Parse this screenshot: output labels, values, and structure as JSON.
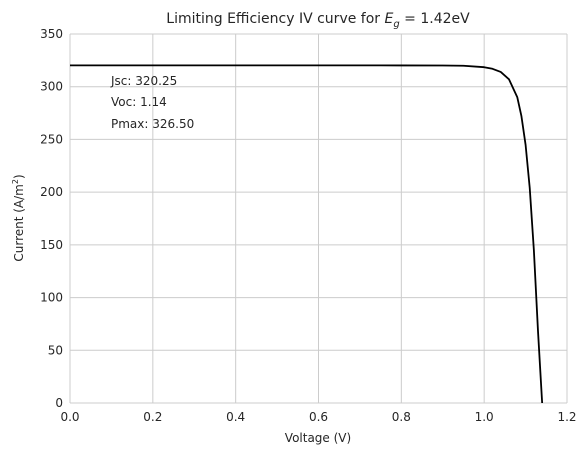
{
  "chart_data": {
    "type": "line",
    "title_prefix": "Limiting Efficiency IV curve for ",
    "title_symbol": "E",
    "title_subscript": "g",
    "title_suffix": " = 1.42eV",
    "xlabel": "Voltage (V)",
    "ylabel_prefix": "Current (A/m",
    "ylabel_superscript": "2",
    "ylabel_suffix": ")",
    "xlim": [
      0,
      1.2
    ],
    "ylim": [
      0,
      350
    ],
    "xticks": [
      "0.0",
      "0.2",
      "0.4",
      "0.6",
      "0.8",
      "1.0",
      "1.2"
    ],
    "yticks": [
      "0",
      "50",
      "100",
      "150",
      "200",
      "250",
      "300",
      "350"
    ],
    "grid": true,
    "line_color": "#000000",
    "series": [
      {
        "x": [
          0.0,
          0.2,
          0.4,
          0.6,
          0.8,
          0.9,
          0.95,
          1.0,
          1.02,
          1.04,
          1.06,
          1.08,
          1.09,
          1.1,
          1.11,
          1.12,
          1.13,
          1.14
        ],
        "y": [
          320.25,
          320.25,
          320.25,
          320.25,
          320.2,
          320.1,
          319.9,
          318.5,
          317.0,
          314.0,
          307.0,
          290.0,
          272.0,
          245.0,
          204.0,
          145.0,
          68.0,
          0.0
        ]
      }
    ],
    "annotations": [
      "Jsc: 320.25",
      "Voc: 1.14",
      "Pmax: 326.50"
    ]
  }
}
